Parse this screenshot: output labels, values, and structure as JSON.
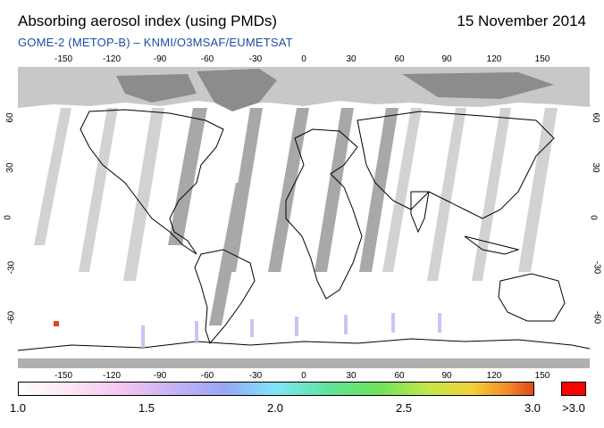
{
  "header": {
    "title": "Absorbing aerosol index (using PMDs)",
    "date": "15 November 2014",
    "subtitle": "GOME-2 (METOP-B)  –  KNMI/O3MSAF/EUMETSAT"
  },
  "axes": {
    "lon_labels": [
      "-150",
      "-120",
      "-90",
      "-60",
      "-30",
      "0",
      "30",
      "60",
      "90",
      "120",
      "150"
    ],
    "lat_labels": [
      "60",
      "30",
      "0",
      "-30",
      "-60"
    ]
  },
  "colorbar": {
    "labels": [
      "1.0",
      "1.5",
      "2.0",
      "2.5",
      "3.0"
    ],
    "max_label": ">3.0",
    "max_color": "#ff0000",
    "range": [
      1.0,
      3.0
    ]
  },
  "map": {
    "projection": "equirectangular",
    "lon_range": [
      -180,
      180
    ],
    "lat_range": [
      -90,
      90
    ],
    "ocean_color": "#ffffff",
    "no_data_color": "#c8c8c8",
    "land_no_data_color": "#a0a0a0"
  }
}
